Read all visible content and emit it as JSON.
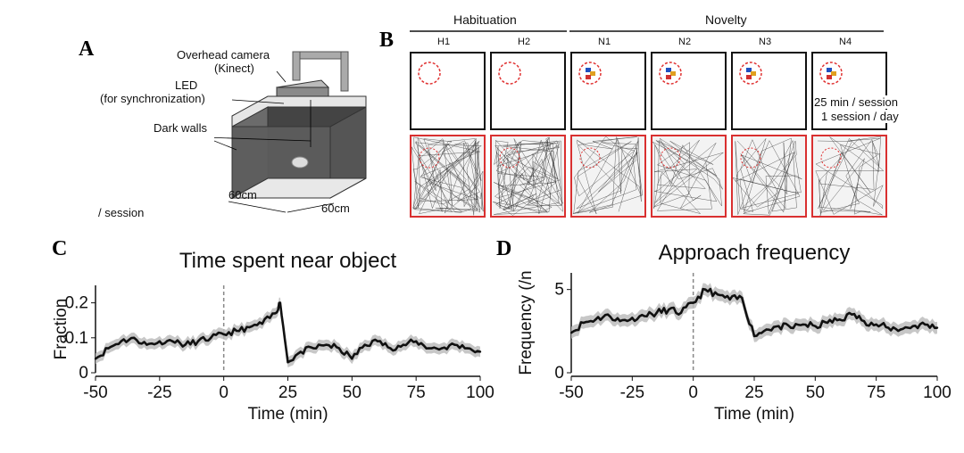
{
  "panel_a": {
    "letter": "A",
    "camera_label_1": "Overhead camera",
    "camera_label_2": "(Kinect)",
    "led_label_1": "LED",
    "led_label_2": "(for synchronization)",
    "walls_label": "Dark walls",
    "dim_1": "60cm",
    "dim_2": "60cm",
    "session_note": "/ session"
  },
  "panel_b": {
    "letter": "B",
    "group_habituation": "Habituation",
    "group_novelty": "Novelty",
    "sessions": [
      {
        "label": "H1",
        "object": false
      },
      {
        "label": "H2",
        "object": false
      },
      {
        "label": "N1",
        "object": true
      },
      {
        "label": "N2",
        "object": true
      },
      {
        "label": "N3",
        "object": true
      },
      {
        "label": "N4",
        "object": true
      }
    ],
    "note_1": "25 min / session",
    "note_2": "1 session / day",
    "colors": {
      "circle": "#e03030",
      "frame_red": "#d93030"
    }
  },
  "chart_data": [
    {
      "panel": "C",
      "type": "line",
      "title": "Time spent near object",
      "xlabel": "Time (min)",
      "ylabel": "Fraction",
      "xlim": [
        -50,
        100
      ],
      "ylim": [
        0,
        0.25
      ],
      "xticks": [
        "-50",
        "-25",
        "0",
        "25",
        "50",
        "75",
        "100"
      ],
      "yticks": [
        "0",
        "0.1",
        "0.2"
      ],
      "vline_x": 0,
      "x": [
        -50,
        -45,
        -40,
        -35,
        -30,
        -25,
        -20,
        -15,
        -10,
        -5,
        0,
        5,
        10,
        15,
        20,
        22,
        25,
        30,
        35,
        40,
        45,
        50,
        55,
        60,
        65,
        70,
        75,
        80,
        85,
        90,
        95,
        100
      ],
      "series": [
        {
          "values": [
            0.04,
            0.07,
            0.09,
            0.1,
            0.08,
            0.09,
            0.09,
            0.08,
            0.09,
            0.1,
            0.11,
            0.12,
            0.13,
            0.14,
            0.17,
            0.2,
            0.03,
            0.06,
            0.07,
            0.08,
            0.07,
            0.04,
            0.08,
            0.09,
            0.07,
            0.08,
            0.09,
            0.07,
            0.07,
            0.08,
            0.07,
            0.06
          ]
        }
      ]
    },
    {
      "panel": "D",
      "type": "line",
      "title": "Approach frequency",
      "xlabel": "Time (min)",
      "ylabel": "Frequency (/n",
      "xlim": [
        -50,
        100
      ],
      "ylim": [
        0,
        6
      ],
      "xticks": [
        "-50",
        "-25",
        "0",
        "25",
        "50",
        "75",
        "100"
      ],
      "yticks": [
        "0",
        "5"
      ],
      "vline_x": 0,
      "x": [
        -50,
        -45,
        -40,
        -35,
        -30,
        -25,
        -20,
        -15,
        -10,
        -5,
        0,
        5,
        10,
        15,
        20,
        25,
        30,
        35,
        40,
        45,
        50,
        55,
        60,
        65,
        70,
        75,
        80,
        85,
        90,
        95,
        100
      ],
      "series": [
        {
          "values": [
            2.4,
            3.0,
            3.2,
            3.5,
            3.1,
            3.3,
            3.4,
            3.6,
            3.8,
            3.6,
            4.2,
            5.0,
            4.7,
            4.4,
            4.5,
            2.2,
            2.6,
            2.8,
            2.7,
            2.9,
            2.8,
            3.0,
            3.2,
            3.5,
            3.1,
            2.9,
            2.7,
            2.6,
            2.8,
            2.9,
            2.7
          ]
        }
      ]
    }
  ]
}
